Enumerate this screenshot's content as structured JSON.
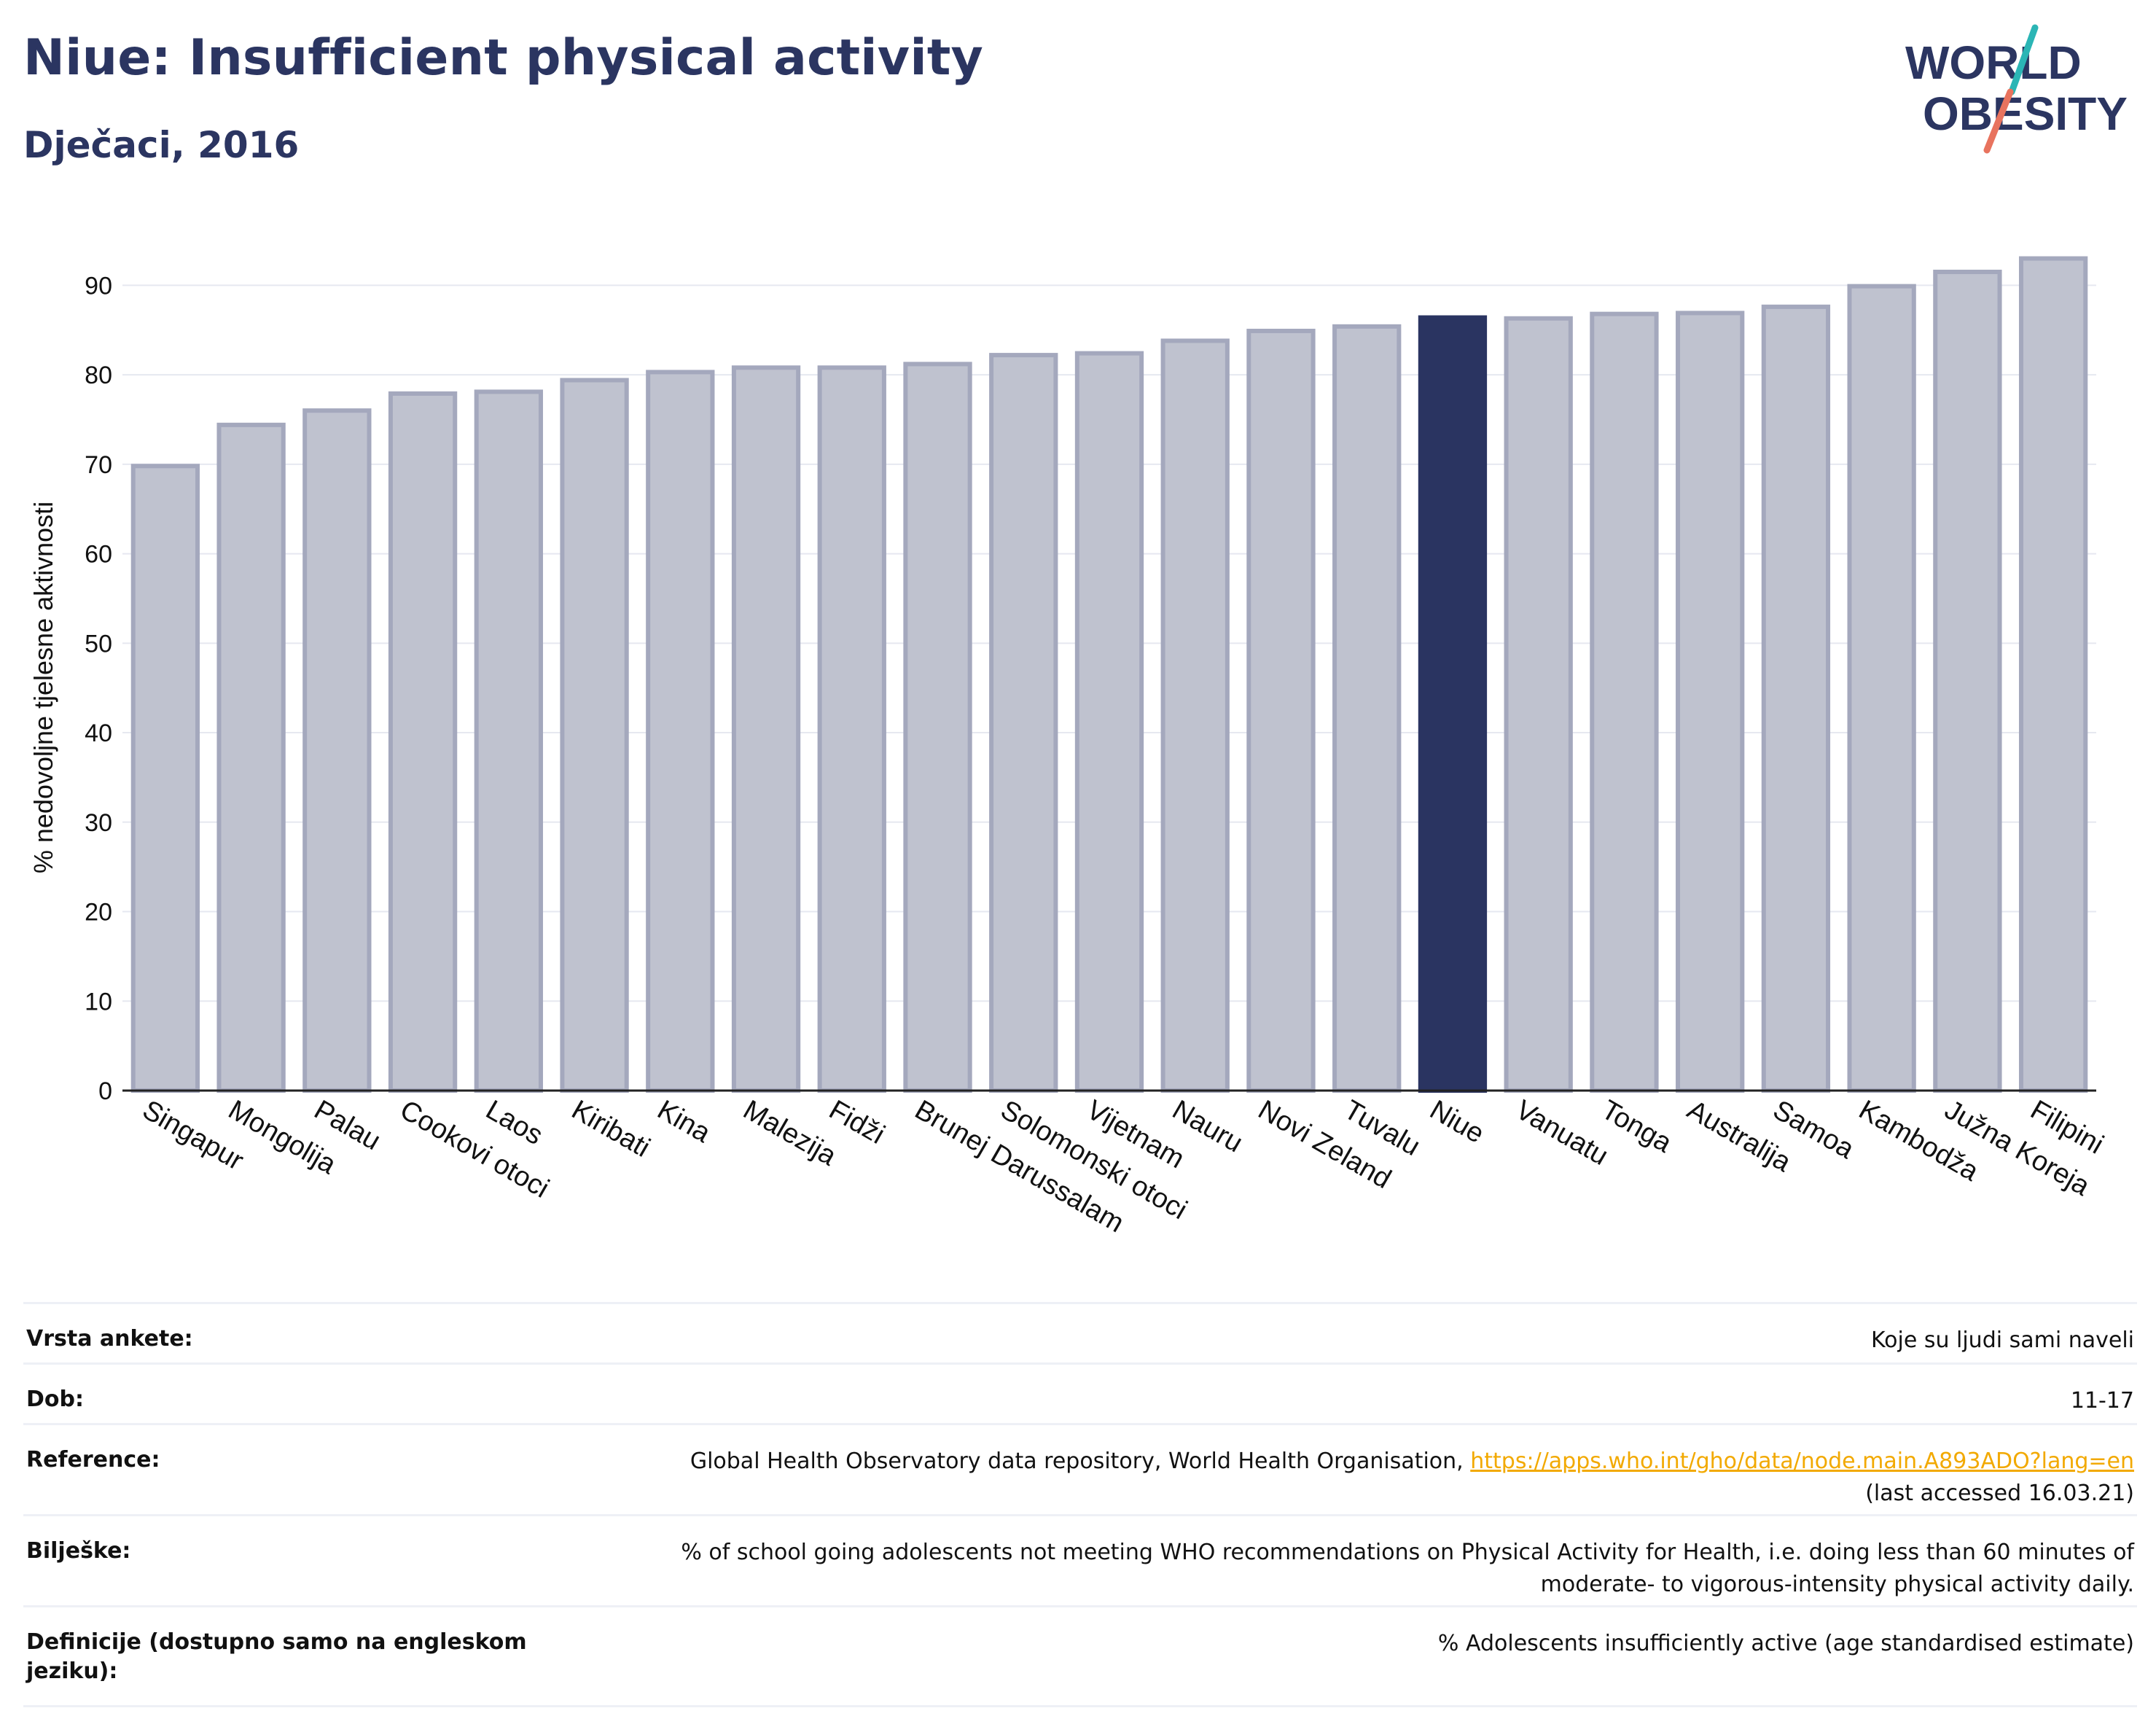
{
  "header": {
    "title": "Niue: Insufficient physical activity",
    "subtitle": "Dječaci, 2016"
  },
  "logo": {
    "line1": "WORLD",
    "line2": "OBESITY"
  },
  "colors": {
    "highlight": "#2a3461",
    "bar_fill": "#bfc2cf",
    "bar_stroke": "#a4a8bd",
    "title": "#2b3561",
    "logo_teal": "#2bb5b5",
    "logo_coral": "#e8735e"
  },
  "chart_data": {
    "type": "bar",
    "ylabel": "% nedovoljne tjelesne aktivnosti",
    "ylim": [
      0,
      95
    ],
    "yticks": [
      0,
      10,
      20,
      30,
      40,
      50,
      60,
      70,
      80,
      90
    ],
    "grid": true,
    "highlight": "Niue",
    "categories": [
      "Singapur",
      "Mongolija",
      "Palau",
      "Cookovi otoci",
      "Laos",
      "Kiribati",
      "Kina",
      "Malezija",
      "Fidži",
      "Brunej Darussalam",
      "Solomonski otoci",
      "Vijetnam",
      "Nauru",
      "Novi Zeland",
      "Tuvalu",
      "Niue",
      "Vanuatu",
      "Tonga",
      "Australija",
      "Samoa",
      "Kambodža",
      "Južna Koreja",
      "Filipini"
    ],
    "values": [
      69.8,
      74.4,
      76.0,
      77.9,
      78.1,
      79.4,
      80.3,
      80.8,
      80.8,
      81.2,
      82.2,
      82.4,
      83.8,
      84.9,
      85.4,
      86.4,
      86.3,
      86.8,
      86.9,
      87.6,
      89.9,
      91.5,
      93.0
    ]
  },
  "info": {
    "survey_type_label": "Vrsta ankete:",
    "survey_type_value": "Koje su ljudi sami naveli",
    "age_label": "Dob:",
    "age_value": "11-17",
    "reference_label": "Reference:",
    "reference_text": "Global Health Observatory data repository, World Health Organisation,",
    "reference_link": "https://apps.who.int/gho/data/node.main.A893ADO?lang=en",
    "reference_accessed": "(last accessed 16.03.21)",
    "notes_label": "Bilješke:",
    "notes_line1": "% of school going adolescents not meeting WHO recommendations on Physical Activity for Health, i.e. doing less than 60 minutes of",
    "notes_line2": "moderate- to vigorous-intensity physical activity daily.",
    "definitions_label": "Definicije (dostupno samo na engleskom jeziku):",
    "definitions_value": "% Adolescents insufficiently active (age standardised estimate)"
  }
}
